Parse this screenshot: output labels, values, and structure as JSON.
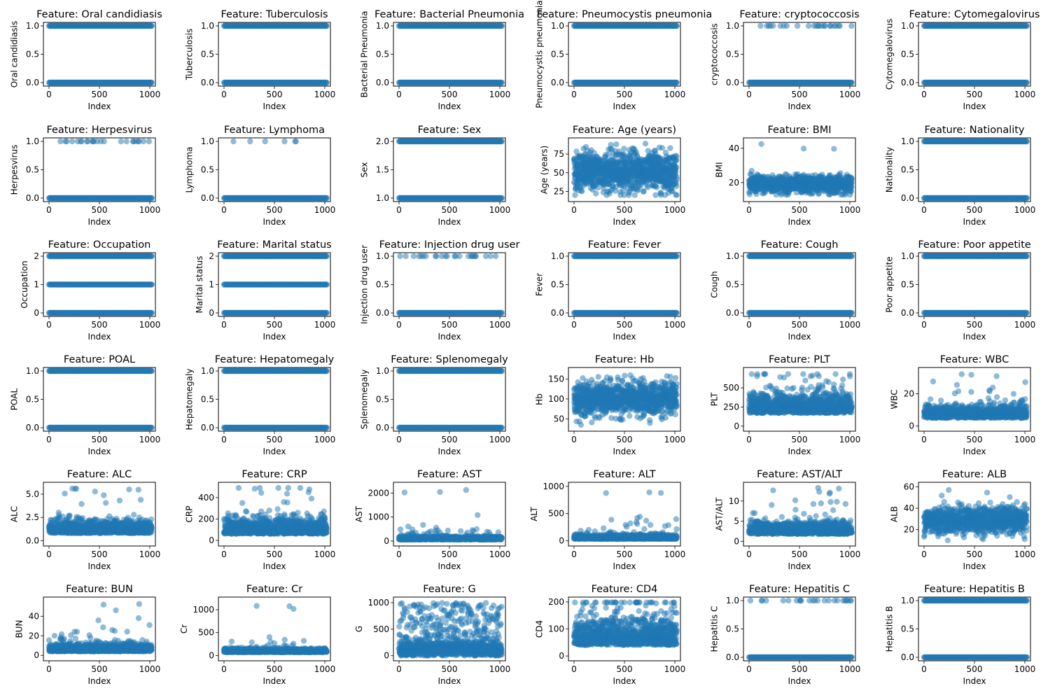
{
  "chart_data": {
    "type": "scatter",
    "layout": "6x6 grid of scatter subplots",
    "marker_color": "#1f77b4",
    "marker_alpha": 0.5,
    "xlabel": "Index",
    "x_ticks": [
      0,
      500,
      1000
    ],
    "x_range": [
      0,
      1000
    ],
    "panels": [
      {
        "feature": "Oral candidiasis",
        "title": "Feature: Oral candidiasis",
        "ylabel": "Oral candidiasis",
        "kind": "binary",
        "levels": [
          0,
          1
        ],
        "y_ticks": [
          "0.0",
          "0.5",
          "1.0"
        ],
        "ylim": [
          0,
          1
        ]
      },
      {
        "feature": "Tuberculosis",
        "title": "Feature: Tuberculosis",
        "ylabel": "Tuberculosis",
        "kind": "binary",
        "levels": [
          0,
          1
        ],
        "y_ticks": [
          "0.0",
          "0.5",
          "1.0"
        ],
        "ylim": [
          0,
          1
        ]
      },
      {
        "feature": "Bacterial Pneumonia",
        "title": "Feature: Bacterial Pneumonia",
        "ylabel": "Bacterial Pneumonia",
        "kind": "binary",
        "levels": [
          0,
          1
        ],
        "y_ticks": [
          "0.0",
          "0.5",
          "1.0"
        ],
        "ylim": [
          0,
          1
        ]
      },
      {
        "feature": "Pneumocystis pneumonia",
        "title": "Feature: Pneumocystis pneumonia",
        "ylabel": "Pneumocystis pneumonia",
        "kind": "binary",
        "levels": [
          0,
          1
        ],
        "y_ticks": [
          "0.0",
          "0.5",
          "1.0"
        ],
        "ylim": [
          0,
          1
        ]
      },
      {
        "feature": "cryptococcosis",
        "title": "Feature: cryptococcosis",
        "ylabel": "cryptococcosis",
        "kind": "sparse",
        "levels": [
          0,
          1
        ],
        "y_ticks": [
          "0.0",
          "0.5",
          "1.0"
        ],
        "ylim": [
          0,
          1
        ]
      },
      {
        "feature": "Cytomegalovirus",
        "title": "Feature: Cytomegalovirus",
        "ylabel": "Cytomegalovirus",
        "kind": "binary",
        "levels": [
          0,
          1
        ],
        "y_ticks": [
          "0.0",
          "0.5",
          "1.0"
        ],
        "ylim": [
          0,
          1
        ]
      },
      {
        "feature": "Herpesvirus",
        "title": "Feature: Herpesvirus",
        "ylabel": "Herpesvirus",
        "kind": "sparse",
        "levels": [
          0,
          1
        ],
        "y_ticks": [
          "0.0",
          "0.5",
          "1.0"
        ],
        "ylim": [
          0,
          1
        ]
      },
      {
        "feature": "Lymphoma",
        "title": "Feature: Lymphoma",
        "ylabel": "Lymphoma",
        "kind": "rare",
        "levels": [
          0,
          1
        ],
        "y_ticks": [
          "0.0",
          "0.5",
          "1.0"
        ],
        "ylim": [
          0,
          1
        ]
      },
      {
        "feature": "Sex",
        "title": "Feature: Sex",
        "ylabel": "Sex",
        "kind": "binary",
        "levels": [
          1,
          2
        ],
        "y_ticks": [
          "1.0",
          "1.5",
          "2.0"
        ],
        "ylim": [
          1,
          2
        ]
      },
      {
        "feature": "Age (years)",
        "title": "Feature: Age (years)",
        "ylabel": "Age (years)",
        "kind": "continuous",
        "y_ticks": [
          "25",
          "50",
          "75"
        ],
        "ylim": [
          16,
          92
        ],
        "center": 52,
        "spread": 13,
        "min": 20,
        "max": 89
      },
      {
        "feature": "BMI",
        "title": "Feature: BMI",
        "ylabel": "BMI",
        "kind": "continuous",
        "y_ticks": [
          "20",
          "40"
        ],
        "ylim": [
          11,
          44
        ],
        "center": 19,
        "spread": 2.5,
        "min": 13,
        "max": 43
      },
      {
        "feature": "Nationality",
        "title": "Feature: Nationality",
        "ylabel": "Nationality",
        "kind": "binary",
        "levels": [
          0,
          1
        ],
        "y_ticks": [
          "0.0",
          "0.5",
          "1.0"
        ],
        "ylim": [
          0,
          1
        ]
      },
      {
        "feature": "Occupation",
        "title": "Feature: Occupation",
        "ylabel": "Occupation",
        "kind": "ternary",
        "levels": [
          0,
          1,
          2
        ],
        "y_ticks": [
          "0",
          "1",
          "2"
        ],
        "ylim": [
          0,
          2
        ]
      },
      {
        "feature": "Marital status",
        "title": "Feature: Marital status",
        "ylabel": "Marital status",
        "kind": "ternary",
        "levels": [
          0,
          1,
          2
        ],
        "y_ticks": [
          "0",
          "1",
          "2"
        ],
        "ylim": [
          0,
          2
        ]
      },
      {
        "feature": "Injection drug user",
        "title": "Feature: Injection drug user",
        "ylabel": "Injection drug user",
        "kind": "sparse",
        "levels": [
          0,
          1
        ],
        "y_ticks": [
          "0.0",
          "0.5",
          "1.0"
        ],
        "ylim": [
          0,
          1
        ]
      },
      {
        "feature": "Fever",
        "title": "Feature: Fever",
        "ylabel": "Fever",
        "kind": "binary",
        "levels": [
          0,
          1
        ],
        "y_ticks": [
          "0.0",
          "0.5",
          "1.0"
        ],
        "ylim": [
          0,
          1
        ]
      },
      {
        "feature": "Cough",
        "title": "Feature: Cough",
        "ylabel": "Cough",
        "kind": "binary",
        "levels": [
          0,
          1
        ],
        "y_ticks": [
          "0.0",
          "0.5",
          "1.0"
        ],
        "ylim": [
          0,
          1
        ]
      },
      {
        "feature": "Poor appetite",
        "title": "Feature: Poor appetite",
        "ylabel": "Poor appetite",
        "kind": "binary",
        "levels": [
          0,
          1
        ],
        "y_ticks": [
          "0.0",
          "0.5",
          "1.0"
        ],
        "ylim": [
          0,
          1
        ]
      },
      {
        "feature": "POAL",
        "title": "Feature: POAL",
        "ylabel": "POAL",
        "kind": "binary",
        "levels": [
          0,
          1
        ],
        "y_ticks": [
          "0.0",
          "0.5",
          "1.0"
        ],
        "ylim": [
          0,
          1
        ]
      },
      {
        "feature": "Hepatomegaly",
        "title": "Feature: Hepatomegaly",
        "ylabel": "Hepatomegaly",
        "kind": "binary",
        "levels": [
          0,
          1
        ],
        "y_ticks": [
          "0.0",
          "0.5",
          "1.0"
        ],
        "ylim": [
          0,
          1
        ]
      },
      {
        "feature": "Splenomegaly",
        "title": "Feature: Splenomegaly",
        "ylabel": "Splenomegaly",
        "kind": "binary",
        "levels": [
          0,
          1
        ],
        "y_ticks": [
          "0.0",
          "0.5",
          "1.0"
        ],
        "ylim": [
          0,
          1
        ]
      },
      {
        "feature": "Hb",
        "title": "Feature: Hb",
        "ylabel": "Hb",
        "kind": "continuous",
        "y_ticks": [
          "50",
          "100",
          "150"
        ],
        "ylim": [
          28,
          170
        ],
        "center": 100,
        "spread": 20,
        "min": 35,
        "max": 163
      },
      {
        "feature": "PLT",
        "title": "Feature: PLT",
        "ylabel": "PLT",
        "kind": "skewed",
        "y_ticks": [
          "0",
          "250",
          "500"
        ],
        "ylim": [
          -20,
          720
        ],
        "center": 170,
        "spread": 90,
        "min": 5,
        "max": 680
      },
      {
        "feature": "WBC",
        "title": "Feature: WBC",
        "ylabel": "WBC",
        "kind": "skewed",
        "y_ticks": [
          "0",
          "20"
        ],
        "ylim": [
          -1,
          34
        ],
        "center": 5,
        "spread": 2.5,
        "min": 0.5,
        "max": 32
      },
      {
        "feature": "ALC",
        "title": "Feature: ALC",
        "ylabel": "ALC",
        "kind": "skewed",
        "y_ticks": [
          "0.0",
          "2.5",
          "5.0"
        ],
        "ylim": [
          -0.2,
          5.9
        ],
        "center": 0.8,
        "spread": 0.45,
        "min": 0.1,
        "max": 5.6
      },
      {
        "feature": "CRP",
        "title": "Feature: CRP",
        "ylabel": "CRP",
        "kind": "skewed",
        "y_ticks": [
          "0",
          "200",
          "400"
        ],
        "ylim": [
          -20,
          510
        ],
        "center": 60,
        "spread": 50,
        "min": 1,
        "max": 490
      },
      {
        "feature": "AST",
        "title": "Feature: AST",
        "ylabel": "AST",
        "kind": "skewed",
        "y_ticks": [
          "0",
          "1000",
          "2000"
        ],
        "ylim": [
          -60,
          2300
        ],
        "center": 60,
        "spread": 45,
        "min": 10,
        "max": 2200
      },
      {
        "feature": "ALT",
        "title": "Feature: ALT",
        "ylabel": "ALT",
        "kind": "skewed",
        "y_ticks": [
          "0",
          "500",
          "1000"
        ],
        "ylim": [
          -30,
          1010
        ],
        "center": 35,
        "spread": 25,
        "min": 5,
        "max": 960
      },
      {
        "feature": "AST/ALT",
        "title": "Feature: AST/ALT",
        "ylabel": "AST/ALT",
        "kind": "skewed",
        "y_ticks": [
          "0",
          "5",
          "10"
        ],
        "ylim": [
          -0.3,
          13.8
        ],
        "center": 1.8,
        "spread": 1.0,
        "min": 0.2,
        "max": 13.3
      },
      {
        "feature": "ALB",
        "title": "Feature: ALB",
        "ylabel": "ALB",
        "kind": "continuous",
        "y_ticks": [
          "20",
          "40",
          "60"
        ],
        "ylim": [
          8,
          61
        ],
        "center": 29,
        "spread": 6,
        "min": 10,
        "max": 58
      },
      {
        "feature": "BUN",
        "title": "Feature: BUN",
        "ylabel": "BUN",
        "kind": "skewed",
        "y_ticks": [
          "0",
          "20",
          "40"
        ],
        "ylim": [
          -2,
          56
        ],
        "center": 4,
        "spread": 2.5,
        "min": 0.5,
        "max": 53
      },
      {
        "feature": "Cr",
        "title": "Feature: Cr",
        "ylabel": "Cr",
        "kind": "skewed",
        "y_ticks": [
          "0",
          "500",
          "1000"
        ],
        "ylim": [
          -40,
          1200
        ],
        "center": 70,
        "spread": 25,
        "min": 20,
        "max": 1140
      },
      {
        "feature": "G",
        "title": "Feature: G",
        "ylabel": "G",
        "kind": "gdist",
        "y_ticks": [
          "0",
          "500",
          "1000"
        ],
        "ylim": [
          -30,
          1040
        ],
        "center": 120,
        "spread": 80,
        "min": 0,
        "max": 1000
      },
      {
        "feature": "CD4",
        "title": "Feature: CD4",
        "ylabel": "CD4",
        "kind": "skewed",
        "y_ticks": [
          "0",
          "100",
          "200"
        ],
        "ylim": [
          -5,
          205
        ],
        "center": 40,
        "spread": 35,
        "min": 1,
        "max": 198
      },
      {
        "feature": "Hepatitis C",
        "title": "Feature: Hepatitis C",
        "ylabel": "Hepatitis C",
        "kind": "sparse",
        "levels": [
          0,
          1
        ],
        "y_ticks": [
          "0.0",
          "0.5",
          "1.0"
        ],
        "ylim": [
          0,
          1
        ]
      },
      {
        "feature": "Hepatitis B",
        "title": "Feature: Hepatitis B",
        "ylabel": "Hepatitis B",
        "kind": "binary",
        "levels": [
          0,
          1
        ],
        "y_ticks": [
          "0.0",
          "0.5",
          "1.0"
        ],
        "ylim": [
          0,
          1
        ]
      }
    ]
  }
}
